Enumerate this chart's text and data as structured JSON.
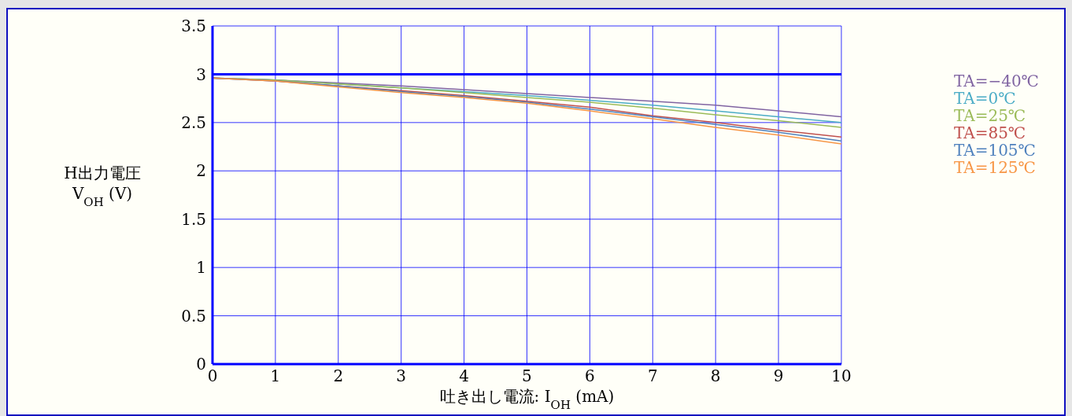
{
  "chart_data": {
    "type": "line",
    "xlabel": "吐き出し電流: I$_{OH}$ (mA)",
    "ylabel": "H出力電圧\nV$_{OH}$ (V)",
    "x": [
      0,
      1,
      2,
      3,
      4,
      5,
      6,
      7,
      8,
      9,
      10
    ],
    "series": [
      {
        "name": "TA=−40℃",
        "color": "#8064a2",
        "values": [
          2.96,
          2.94,
          2.91,
          2.88,
          2.84,
          2.8,
          2.76,
          2.72,
          2.68,
          2.62,
          2.56
        ]
      },
      {
        "name": "TA=0℃",
        "color": "#4bacc6",
        "values": [
          2.96,
          2.94,
          2.9,
          2.86,
          2.82,
          2.78,
          2.73,
          2.68,
          2.62,
          2.56,
          2.5
        ]
      },
      {
        "name": "TA=25℃",
        "color": "#9bbb59",
        "values": [
          2.96,
          2.94,
          2.9,
          2.86,
          2.81,
          2.76,
          2.71,
          2.65,
          2.58,
          2.52,
          2.45
        ]
      },
      {
        "name": "TA=85℃",
        "color": "#c0504d",
        "values": [
          2.96,
          2.93,
          2.88,
          2.83,
          2.78,
          2.72,
          2.66,
          2.57,
          2.5,
          2.42,
          2.35
        ]
      },
      {
        "name": "TA=105℃",
        "color": "#4f81bd",
        "values": [
          2.96,
          2.93,
          2.88,
          2.82,
          2.77,
          2.71,
          2.64,
          2.56,
          2.48,
          2.4,
          2.31
        ]
      },
      {
        "name": "TA=125℃",
        "color": "#f79646",
        "values": [
          2.96,
          2.93,
          2.87,
          2.81,
          2.76,
          2.7,
          2.62,
          2.54,
          2.45,
          2.37,
          2.28
        ]
      }
    ],
    "xlim": [
      0,
      10
    ],
    "xticks": [
      0,
      1,
      2,
      3,
      4,
      5,
      6,
      7,
      8,
      9,
      10
    ],
    "ylim": [
      0,
      3.5
    ],
    "yticks": [
      0,
      0.5,
      1,
      1.5,
      2,
      2.5,
      3,
      3.5
    ],
    "ref_lines": [
      {
        "axis": "y",
        "value": 3,
        "color": "#0000ff"
      }
    ],
    "grid": true,
    "legend": "right",
    "marker": "none",
    "line_style": "solid"
  }
}
